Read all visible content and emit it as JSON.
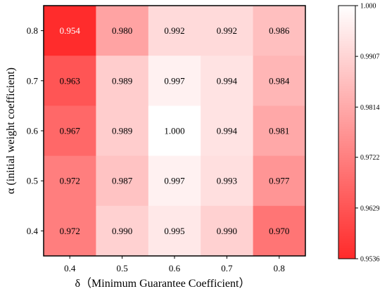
{
  "chart_data": {
    "type": "heatmap",
    "xlabel": "δ（Minimum Guarantee Coefficient）",
    "ylabel": "α (initial weight coefficient)",
    "x_categories": [
      "0.4",
      "0.5",
      "0.6",
      "0.7",
      "0.8"
    ],
    "y_categories": [
      "0.8",
      "0.7",
      "0.6",
      "0.5",
      "0.4"
    ],
    "values": [
      [
        0.954,
        0.98,
        0.992,
        0.992,
        0.986
      ],
      [
        0.963,
        0.989,
        0.997,
        0.994,
        0.984
      ],
      [
        0.967,
        0.989,
        1.0,
        0.994,
        0.981
      ],
      [
        0.972,
        0.987,
        0.997,
        0.993,
        0.977
      ],
      [
        0.972,
        0.99,
        0.995,
        0.99,
        0.97
      ]
    ],
    "value_labels": [
      [
        "0.954",
        "0.980",
        "0.992",
        "0.992",
        "0.986"
      ],
      [
        "0.963",
        "0.989",
        "0.997",
        "0.994",
        "0.984"
      ],
      [
        "0.967",
        "0.989",
        "1.000",
        "0.994",
        "0.981"
      ],
      [
        "0.972",
        "0.987",
        "0.997",
        "0.993",
        "0.977"
      ],
      [
        "0.972",
        "0.990",
        "0.995",
        "0.990",
        "0.970"
      ]
    ],
    "colorbar": {
      "min": 0.9536,
      "max": 1.0,
      "ticks": [
        "1.000",
        "0.9907",
        "0.9814",
        "0.9722",
        "0.9629",
        "0.9536"
      ],
      "tick_values": [
        1.0,
        0.9907,
        0.9814,
        0.9722,
        0.9629,
        0.9536
      ],
      "low_color": "#ff2a2a",
      "high_color": "#ffffff"
    }
  }
}
